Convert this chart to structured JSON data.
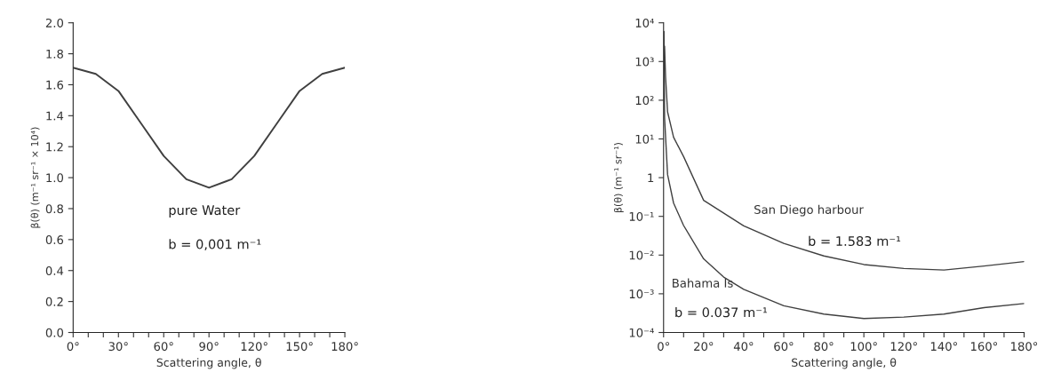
{
  "chart_data": [
    {
      "type": "line",
      "xlabel": "Scattering angle, θ",
      "ylabel": "β(θ) (m⁻¹ sr⁻¹ × 10⁴)",
      "annotations": [
        "pure Water",
        "b = 0,001 m⁻¹"
      ],
      "x": [
        0,
        15,
        30,
        45,
        60,
        75,
        90,
        105,
        120,
        135,
        150,
        165,
        180
      ],
      "series": [
        {
          "color": "#404040",
          "values": [
            1.71,
            1.67,
            1.56,
            1.35,
            1.14,
            0.99,
            0.935,
            0.99,
            1.14,
            1.35,
            1.56,
            1.67,
            1.71
          ]
        }
      ],
      "xlim": [
        0,
        180
      ],
      "ylim": [
        0,
        2.0
      ],
      "xticks": [
        {
          "value": 0,
          "label": "0°"
        },
        {
          "value": 10,
          "label": null
        },
        {
          "value": 20,
          "label": null
        },
        {
          "value": 30,
          "label": "30°"
        },
        {
          "value": 40,
          "label": null
        },
        {
          "value": 50,
          "label": null
        },
        {
          "value": 60,
          "label": "60°"
        },
        {
          "value": 70,
          "label": null
        },
        {
          "value": 80,
          "label": null
        },
        {
          "value": 90,
          "label": "90°"
        },
        {
          "value": 100,
          "label": null
        },
        {
          "value": 110,
          "label": null
        },
        {
          "value": 120,
          "label": "120°"
        },
        {
          "value": 130,
          "label": null
        },
        {
          "value": 140,
          "label": null
        },
        {
          "value": 150,
          "label": "150°"
        },
        {
          "value": 160,
          "label": null
        },
        {
          "value": 170,
          "label": null
        },
        {
          "value": 180,
          "label": "180°"
        }
      ],
      "yticks": [
        {
          "value": 0,
          "label": "0.0"
        },
        {
          "value": 0.2,
          "label": "0.2"
        },
        {
          "value": 0.4,
          "label": "0.4"
        },
        {
          "value": 0.6,
          "label": "0.6"
        },
        {
          "value": 0.8,
          "label": "0.8"
        },
        {
          "value": 1.0,
          "label": "1.0"
        },
        {
          "value": 1.2,
          "label": "1.2"
        },
        {
          "value": 1.4,
          "label": "1.4"
        },
        {
          "value": 1.6,
          "label": "1.6"
        },
        {
          "value": 1.8,
          "label": "1.8"
        },
        {
          "value": 2.0,
          "label": "2.0"
        }
      ],
      "grid": false,
      "legend": false
    },
    {
      "type": "line",
      "xlabel": "Scattering angle, θ",
      "ylabel": "β(θ) (m⁻¹ sr⁻¹)",
      "annotations": [
        "b = 1.583 m⁻¹",
        "b = 0.037 m⁻¹"
      ],
      "log": "y",
      "series": [
        {
          "name": "San Diego harbour",
          "color": "#404040",
          "x": [
            0.5,
            1,
            2,
            5,
            10,
            20,
            40,
            60,
            80,
            100,
            120,
            140,
            160,
            180
          ],
          "values": [
            2500,
            400,
            50,
            11,
            3.5,
            0.26,
            0.057,
            0.02,
            0.0095,
            0.0057,
            0.0045,
            0.0041,
            0.0052,
            0.0068
          ]
        },
        {
          "name": "Bahama Is",
          "color": "#404040",
          "x": [
            0.2,
            0.5,
            2,
            5,
            10,
            20,
            30,
            40,
            60,
            80,
            100,
            120,
            140,
            160,
            180
          ],
          "values": [
            6000,
            35,
            1.2,
            0.22,
            0.058,
            0.008,
            0.0027,
            0.0013,
            0.00049,
            0.0003,
            0.00023,
            0.00025,
            0.0003,
            0.00044,
            0.00056
          ]
        }
      ],
      "xlim": [
        0,
        180
      ],
      "ylim": [
        0.0001,
        10000
      ],
      "xticks": [
        {
          "value": 0,
          "label": "0°"
        },
        {
          "value": 10,
          "label": null
        },
        {
          "value": 20,
          "label": "20°"
        },
        {
          "value": 30,
          "label": null
        },
        {
          "value": 40,
          "label": "40°"
        },
        {
          "value": 50,
          "label": null
        },
        {
          "value": 60,
          "label": "60°"
        },
        {
          "value": 70,
          "label": null
        },
        {
          "value": 80,
          "label": "80°"
        },
        {
          "value": 90,
          "label": null
        },
        {
          "value": 100,
          "label": "100°"
        },
        {
          "value": 110,
          "label": null
        },
        {
          "value": 120,
          "label": "120°"
        },
        {
          "value": 130,
          "label": null
        },
        {
          "value": 140,
          "label": "140°"
        },
        {
          "value": 150,
          "label": null
        },
        {
          "value": 160,
          "label": "160°"
        },
        {
          "value": 170,
          "label": null
        },
        {
          "value": 180,
          "label": "180°"
        }
      ],
      "yticks": [
        {
          "value": 0.0001,
          "label": "10⁻⁴"
        },
        {
          "value": 0.001,
          "label": "10⁻³"
        },
        {
          "value": 0.01,
          "label": "10⁻²"
        },
        {
          "value": 0.1,
          "label": "10⁻¹"
        },
        {
          "value": 1,
          "label": "1"
        },
        {
          "value": 10,
          "label": "10¹"
        },
        {
          "value": 100,
          "label": "10²"
        },
        {
          "value": 1000,
          "label": "10³"
        },
        {
          "value": 10000,
          "label": "10⁴"
        }
      ],
      "grid": false,
      "legend": false
    }
  ]
}
